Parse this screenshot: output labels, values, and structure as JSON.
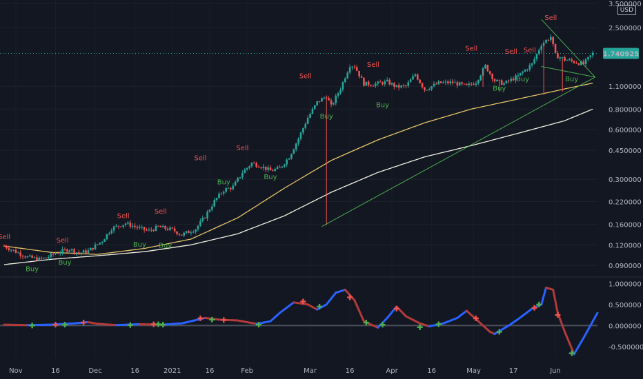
{
  "currency": "USD",
  "colors": {
    "bg": "#131722",
    "up": "#26a69a",
    "down": "#ef5350",
    "ma_fast": "#e8c56a",
    "ma_slow": "#f2f0e1",
    "trend": "#4caf50",
    "osc_up": "#2962ff",
    "osc_down": "#b23a3a",
    "buy": "#26a69a",
    "sell": "#ef5350"
  },
  "chart_data": [
    {
      "type": "candlestick",
      "yscale": "log",
      "ylim": [
        0.078,
        3.5
      ],
      "y_ticks": [
        "3.500000",
        "2.500000",
        "1.100000",
        "0.800000",
        "0.600000",
        "0.450000",
        "0.300000",
        "0.220000",
        "0.160000",
        "0.120000",
        "0.090000"
      ],
      "x_ticks": [
        "Nov",
        "16",
        "Dec",
        "16",
        "2021",
        "16",
        "Feb",
        "Mar",
        "16",
        "Apr",
        "16",
        "May",
        "17",
        "Jun"
      ],
      "last_price": "1.740925",
      "close_series": [
        [
          0,
          0.118
        ],
        [
          5,
          0.109
        ],
        [
          10,
          0.101
        ],
        [
          15,
          0.098
        ],
        [
          18,
          0.1
        ],
        [
          22,
          0.107
        ],
        [
          28,
          0.113
        ],
        [
          32,
          0.107
        ],
        [
          36,
          0.11
        ],
        [
          42,
          0.127
        ],
        [
          46,
          0.151
        ],
        [
          52,
          0.162
        ],
        [
          58,
          0.151
        ],
        [
          62,
          0.146
        ],
        [
          66,
          0.154
        ],
        [
          72,
          0.148
        ],
        [
          76,
          0.138
        ],
        [
          82,
          0.15
        ],
        [
          86,
          0.178
        ],
        [
          90,
          0.221
        ],
        [
          94,
          0.258
        ],
        [
          98,
          0.27
        ],
        [
          102,
          0.33
        ],
        [
          106,
          0.376
        ],
        [
          110,
          0.36
        ],
        [
          114,
          0.338
        ],
        [
          118,
          0.35
        ],
        [
          122,
          0.41
        ],
        [
          126,
          0.53
        ],
        [
          130,
          0.71
        ],
        [
          134,
          0.88
        ],
        [
          138,
          0.96
        ],
        [
          140,
          0.83
        ],
        [
          144,
          1.07
        ],
        [
          148,
          1.48
        ],
        [
          150,
          1.46
        ],
        [
          154,
          1.14
        ],
        [
          158,
          1.13
        ],
        [
          164,
          1.17
        ],
        [
          168,
          1.09
        ],
        [
          172,
          1.1
        ],
        [
          176,
          1.3
        ],
        [
          180,
          1.05
        ],
        [
          186,
          1.15
        ],
        [
          192,
          1.16
        ],
        [
          198,
          1.1
        ],
        [
          202,
          1.17
        ],
        [
          206,
          1.46
        ],
        [
          210,
          1.19
        ],
        [
          214,
          1.14
        ],
        [
          220,
          1.27
        ],
        [
          226,
          1.5
        ],
        [
          230,
          1.98
        ],
        [
          234,
          2.2
        ],
        [
          236,
          1.7
        ],
        [
          240,
          1.6
        ],
        [
          244,
          1.55
        ],
        [
          248,
          1.5
        ],
        [
          252,
          1.74
        ]
      ],
      "moving_averages": [
        {
          "points": [
            [
              0,
              0.118
            ],
            [
              20,
              0.108
            ],
            [
              40,
              0.105
            ],
            [
              60,
              0.114
            ],
            [
              80,
              0.13
            ],
            [
              100,
              0.175
            ],
            [
              120,
              0.265
            ],
            [
              140,
              0.39
            ],
            [
              160,
              0.52
            ],
            [
              180,
              0.66
            ],
            [
              200,
              0.8
            ],
            [
              220,
              0.92
            ],
            [
              240,
              1.06
            ],
            [
              252,
              1.15
            ]
          ]
        },
        {
          "points": [
            [
              0,
              0.091
            ],
            [
              20,
              0.098
            ],
            [
              40,
              0.103
            ],
            [
              60,
              0.109
            ],
            [
              80,
              0.12
            ],
            [
              100,
              0.14
            ],
            [
              120,
              0.18
            ],
            [
              140,
              0.25
            ],
            [
              160,
              0.33
            ],
            [
              180,
              0.41
            ],
            [
              200,
              0.48
            ],
            [
              220,
              0.57
            ],
            [
              240,
              0.68
            ],
            [
              252,
              0.8
            ]
          ]
        }
      ],
      "trendlines": [
        {
          "from": [
            136,
            0.155
          ],
          "to": [
            253,
            1.25
          ]
        },
        {
          "from": [
            230,
            2.8
          ],
          "to": [
            253,
            1.25
          ]
        },
        {
          "from": [
            230,
            1.45
          ],
          "to": [
            253,
            1.25
          ]
        }
      ],
      "signals": [
        {
          "label": "Sell",
          "x": 0,
          "y": 0.13
        },
        {
          "label": "Sell",
          "x": 25,
          "y": 0.124
        },
        {
          "label": "Buy",
          "x": 12,
          "y": 0.083
        },
        {
          "label": "Buy",
          "x": 26,
          "y": 0.091
        },
        {
          "label": "Sell",
          "x": 51,
          "y": 0.174
        },
        {
          "label": "Sell",
          "x": 67,
          "y": 0.186
        },
        {
          "label": "Buy",
          "x": 58,
          "y": 0.117
        },
        {
          "label": "Buy",
          "x": 69,
          "y": 0.115
        },
        {
          "label": "Sell",
          "x": 84,
          "y": 0.391
        },
        {
          "label": "Sell",
          "x": 102,
          "y": 0.451
        },
        {
          "label": "Buy",
          "x": 94,
          "y": 0.28
        },
        {
          "label": "Buy",
          "x": 114,
          "y": 0.3
        },
        {
          "label": "Sell",
          "x": 129,
          "y": 1.23
        },
        {
          "label": "Buy",
          "x": 138,
          "y": 0.7
        },
        {
          "label": "Sell",
          "x": 158,
          "y": 1.44
        },
        {
          "label": "Buy",
          "x": 162,
          "y": 0.82
        },
        {
          "label": "Sell",
          "x": 200,
          "y": 1.81
        },
        {
          "label": "Sell",
          "x": 217,
          "y": 1.735
        },
        {
          "label": "Sell",
          "x": 225,
          "y": 1.765
        },
        {
          "label": "Buy",
          "x": 212,
          "y": 1.035
        },
        {
          "label": "Buy",
          "x": 222,
          "y": 1.18
        },
        {
          "label": "Sell",
          "x": 234,
          "y": 2.78
        },
        {
          "label": "Buy",
          "x": 243,
          "y": 1.18
        }
      ]
    },
    {
      "type": "line",
      "ylim": [
        -0.78,
        1.12
      ],
      "y_ticks": [
        "1.000000",
        "0.500000",
        "0.000000",
        "-0.500000"
      ],
      "values": [
        [
          0,
          0.02
        ],
        [
          10,
          0.01
        ],
        [
          20,
          0.02
        ],
        [
          30,
          0.05
        ],
        [
          36,
          0.08
        ],
        [
          40,
          0.04
        ],
        [
          48,
          0.01
        ],
        [
          58,
          0.03
        ],
        [
          68,
          0.02
        ],
        [
          76,
          0.05
        ],
        [
          86,
          0.18
        ],
        [
          92,
          0.14
        ],
        [
          100,
          0.12
        ],
        [
          108,
          0.04
        ],
        [
          114,
          0.1
        ],
        [
          118,
          0.3
        ],
        [
          124,
          0.55
        ],
        [
          130,
          0.5
        ],
        [
          134,
          0.38
        ],
        [
          138,
          0.5
        ],
        [
          142,
          0.78
        ],
        [
          146,
          0.85
        ],
        [
          150,
          0.6
        ],
        [
          154,
          0.1
        ],
        [
          158,
          0.0
        ],
        [
          160,
          -0.05
        ],
        [
          164,
          0.18
        ],
        [
          168,
          0.45
        ],
        [
          172,
          0.22
        ],
        [
          178,
          0.05
        ],
        [
          182,
          -0.02
        ],
        [
          188,
          0.05
        ],
        [
          194,
          0.18
        ],
        [
          198,
          0.35
        ],
        [
          202,
          0.15
        ],
        [
          208,
          -0.15
        ],
        [
          210,
          -0.2
        ],
        [
          216,
          0.0
        ],
        [
          220,
          0.15
        ],
        [
          226,
          0.4
        ],
        [
          230,
          0.5
        ],
        [
          232,
          0.9
        ],
        [
          235,
          0.85
        ],
        [
          237,
          0.3
        ],
        [
          240,
          -0.15
        ],
        [
          244,
          -0.68
        ],
        [
          248,
          -0.3
        ],
        [
          250,
          -0.1
        ],
        [
          254,
          0.3
        ]
      ],
      "zero_line": 0,
      "signals": [
        {
          "kind": "buy",
          "x": 12,
          "y": 0.0
        },
        {
          "kind": "sell",
          "x": 22,
          "y": 0.02
        },
        {
          "kind": "buy",
          "x": 26,
          "y": 0.02
        },
        {
          "kind": "sell",
          "x": 34,
          "y": 0.07
        },
        {
          "kind": "buy",
          "x": 54,
          "y": 0.01
        },
        {
          "kind": "sell",
          "x": 64,
          "y": 0.03
        },
        {
          "kind": "buy",
          "x": 66,
          "y": 0.03
        },
        {
          "kind": "buy",
          "x": 68,
          "y": 0.02
        },
        {
          "kind": "sell",
          "x": 84,
          "y": 0.17
        },
        {
          "kind": "buy",
          "x": 89,
          "y": 0.14
        },
        {
          "kind": "sell",
          "x": 94,
          "y": 0.13
        },
        {
          "kind": "buy",
          "x": 109,
          "y": 0.02
        },
        {
          "kind": "sell",
          "x": 128,
          "y": 0.57
        },
        {
          "kind": "buy",
          "x": 135,
          "y": 0.45
        },
        {
          "kind": "sell",
          "x": 148,
          "y": 0.67
        },
        {
          "kind": "buy",
          "x": 155,
          "y": 0.07
        },
        {
          "kind": "buy",
          "x": 162,
          "y": 0.02
        },
        {
          "kind": "sell",
          "x": 168,
          "y": 0.4
        },
        {
          "kind": "buy",
          "x": 178,
          "y": -0.04
        },
        {
          "kind": "buy",
          "x": 186,
          "y": 0.03
        },
        {
          "kind": "sell",
          "x": 202,
          "y": 0.17
        },
        {
          "kind": "buy",
          "x": 212,
          "y": -0.15
        },
        {
          "kind": "sell",
          "x": 227,
          "y": 0.42
        },
        {
          "kind": "buy",
          "x": 229,
          "y": 0.5
        },
        {
          "kind": "sell",
          "x": 237,
          "y": 0.25
        },
        {
          "kind": "buy",
          "x": 243,
          "y": -0.66
        }
      ]
    }
  ]
}
